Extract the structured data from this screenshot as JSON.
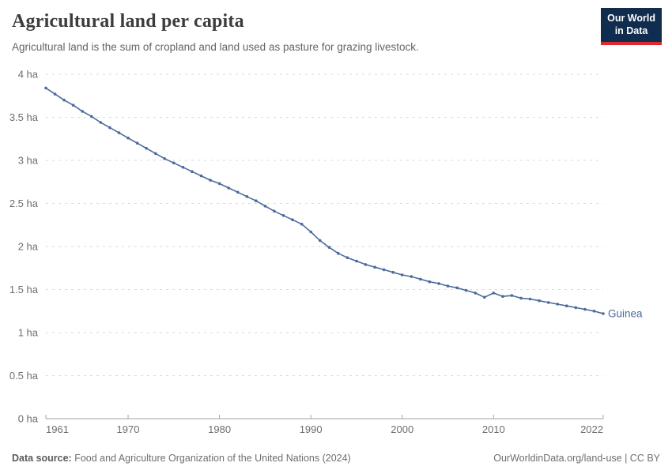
{
  "header": {
    "title": "Agricultural land per capita",
    "subtitle": "Agricultural land is the sum of cropland and land used as pasture for grazing livestock.",
    "logo": {
      "line1": "Our World",
      "line2": "in Data",
      "bg_color": "#102d4f",
      "accent_color": "#dc2a33"
    }
  },
  "chart_data": {
    "type": "line",
    "title": "Agricultural land per capita",
    "xlabel": "",
    "ylabel": "",
    "xlim": [
      1961,
      2022
    ],
    "ylim": [
      0,
      4
    ],
    "grid": "horizontal-dashed",
    "legend_position": "end-of-line-label",
    "entity_label": "Guinea",
    "line_color": "#4c6a9c",
    "grid_color": "#dadada",
    "axis_color": "#a3a3a3",
    "tick_text_color": "#6e6e6e",
    "xticks": [
      {
        "value": 1961,
        "label": "1961"
      },
      {
        "value": 1970,
        "label": "1970"
      },
      {
        "value": 1980,
        "label": "1980"
      },
      {
        "value": 1990,
        "label": "1990"
      },
      {
        "value": 2000,
        "label": "2000"
      },
      {
        "value": 2010,
        "label": "2010"
      },
      {
        "value": 2022,
        "label": "2022"
      }
    ],
    "yticks": [
      {
        "value": 0,
        "label": "0 ha"
      },
      {
        "value": 0.5,
        "label": "0.5 ha"
      },
      {
        "value": 1,
        "label": "1 ha"
      },
      {
        "value": 1.5,
        "label": "1.5 ha"
      },
      {
        "value": 2,
        "label": "2 ha"
      },
      {
        "value": 2.5,
        "label": "2.5 ha"
      },
      {
        "value": 3,
        "label": "3 ha"
      },
      {
        "value": 3.5,
        "label": "3.5 ha"
      },
      {
        "value": 4,
        "label": "4 ha"
      }
    ],
    "series": [
      {
        "name": "Guinea",
        "color": "#4c6a9c",
        "x": [
          1961,
          1962,
          1963,
          1964,
          1965,
          1966,
          1967,
          1968,
          1969,
          1970,
          1971,
          1972,
          1973,
          1974,
          1975,
          1976,
          1977,
          1978,
          1979,
          1980,
          1981,
          1982,
          1983,
          1984,
          1985,
          1986,
          1987,
          1988,
          1989,
          1990,
          1991,
          1992,
          1993,
          1994,
          1995,
          1996,
          1997,
          1998,
          1999,
          2000,
          2001,
          2002,
          2003,
          2004,
          2005,
          2006,
          2007,
          2008,
          2009,
          2010,
          2011,
          2012,
          2013,
          2014,
          2015,
          2016,
          2017,
          2018,
          2019,
          2020,
          2021,
          2022
        ],
        "values": [
          3.84,
          3.77,
          3.7,
          3.64,
          3.57,
          3.51,
          3.44,
          3.38,
          3.32,
          3.26,
          3.2,
          3.14,
          3.08,
          3.02,
          2.97,
          2.92,
          2.87,
          2.82,
          2.77,
          2.73,
          2.68,
          2.63,
          2.58,
          2.53,
          2.47,
          2.41,
          2.36,
          2.31,
          2.26,
          2.17,
          2.07,
          1.99,
          1.92,
          1.87,
          1.83,
          1.79,
          1.76,
          1.73,
          1.7,
          1.67,
          1.65,
          1.62,
          1.59,
          1.57,
          1.54,
          1.52,
          1.49,
          1.46,
          1.41,
          1.46,
          1.42,
          1.43,
          1.4,
          1.39,
          1.37,
          1.35,
          1.33,
          1.31,
          1.29,
          1.27,
          1.25,
          1.22
        ]
      }
    ]
  },
  "footer": {
    "datasource_label": "Data source:",
    "datasource_text": " Food and Agriculture Organization of the United Nations (2024)",
    "credit": "OurWorldinData.org/land-use | CC BY"
  }
}
